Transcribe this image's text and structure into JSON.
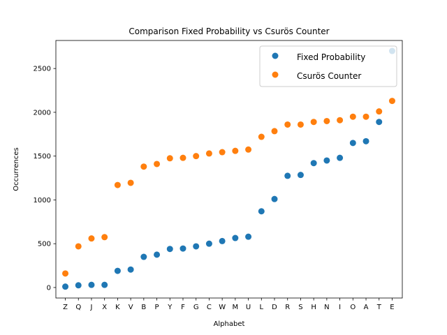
{
  "chart_data": {
    "type": "scatter",
    "title": "Comparison Fixed Probability vs Csurös Counter",
    "xlabel": "Alphabet",
    "ylabel": "Occurrences",
    "categories": [
      "Z",
      "Q",
      "J",
      "X",
      "K",
      "V",
      "B",
      "P",
      "Y",
      "F",
      "G",
      "C",
      "W",
      "M",
      "U",
      "L",
      "D",
      "R",
      "S",
      "H",
      "N",
      "I",
      "O",
      "A",
      "T",
      "E"
    ],
    "ylim": [
      -120,
      2820
    ],
    "yticks": [
      0,
      500,
      1000,
      1500,
      2000,
      2500
    ],
    "legend_position": "top-right",
    "grid": false,
    "series": [
      {
        "name": "Fixed Probability",
        "color": "#1f77b4",
        "values": [
          10,
          25,
          30,
          30,
          190,
          205,
          350,
          375,
          440,
          445,
          470,
          500,
          530,
          565,
          580,
          870,
          1010,
          1275,
          1285,
          1420,
          1450,
          1480,
          1650,
          1670,
          1890,
          2700
        ]
      },
      {
        "name": "Csurös Counter",
        "color": "#ff7f0e",
        "values": [
          160,
          470,
          560,
          575,
          1170,
          1195,
          1380,
          1410,
          1475,
          1480,
          1500,
          1530,
          1545,
          1560,
          1575,
          1720,
          1785,
          1860,
          1860,
          1890,
          1900,
          1910,
          1950,
          1950,
          2010,
          2130
        ]
      }
    ]
  }
}
